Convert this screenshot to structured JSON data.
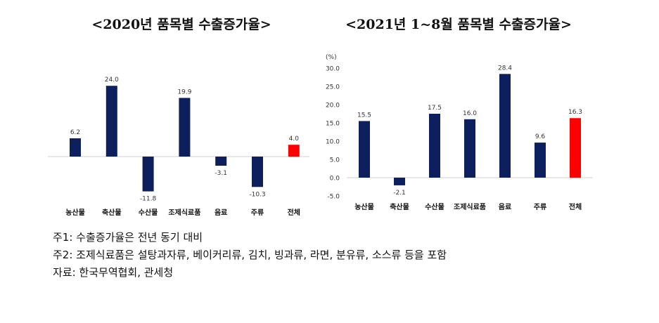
{
  "chart_data": [
    {
      "type": "bar",
      "title": "<2020년 품목별 수출증가율>",
      "categories": [
        "농산물",
        "축산물",
        "수산물",
        "조제식료품",
        "음료",
        "주류",
        "전체"
      ],
      "values": [
        6.2,
        24.0,
        -11.8,
        19.9,
        -3.1,
        -10.3,
        4.0
      ],
      "highlight": "전체",
      "ylim": [
        -14,
        28
      ],
      "unit": ""
    },
    {
      "type": "bar",
      "title": "<2021년 1~8월 품목별 수출증가율>",
      "categories": [
        "농산물",
        "축산물",
        "수산물",
        "조제식료품",
        "음료",
        "주류",
        "전체"
      ],
      "values": [
        15.5,
        -2.1,
        17.5,
        16.0,
        28.4,
        9.6,
        16.3
      ],
      "highlight": "전체",
      "ylim": [
        -5,
        30
      ],
      "yticks": [
        "30.0",
        "25.0",
        "20.0",
        "15.0",
        "10.0",
        "5.0",
        "0.0",
        "-5.0"
      ],
      "ylabel": "(%)"
    }
  ],
  "colors": {
    "bar": "#0d1f5c",
    "highlight": "#ff0000",
    "axis": "#d0d0d0"
  },
  "notes": [
    "주1: 수출증가율은 전년 동기 대비",
    "주2: 조제식료품은 설탕과자류, 베이커리류, 김치, 빙과류, 라면, 분유류, 소스류 등을 포함",
    "자료: 한국무역협회, 관세청"
  ]
}
